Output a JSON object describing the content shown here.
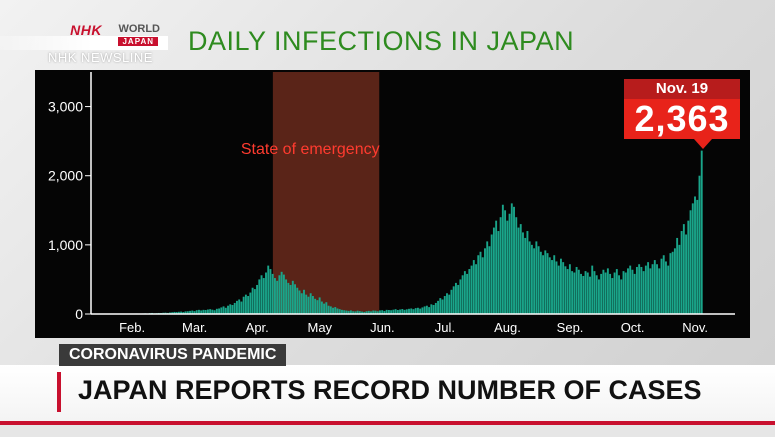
{
  "header": {
    "logo_nhk": "NHK",
    "logo_world": "WORLD",
    "logo_japan": "JAPAN",
    "newsline": "NHK NEWSLINE",
    "chart_title": "DAILY INFECTIONS IN JAPAN"
  },
  "colors": {
    "bar": "#1aa58a",
    "emergency_band": "#5a2418",
    "chart_background": "#050505",
    "title_green": "#2e8b1f",
    "accent_red": "#c8102e",
    "callout_red": "#e8231a"
  },
  "callout": {
    "date": "Nov. 19",
    "value": "2,363"
  },
  "lower_third": {
    "category": "CORONAVIRUS PANDEMIC",
    "headline": "JAPAN REPORTS RECORD NUMBER OF CASES"
  },
  "chart_data": {
    "type": "bar",
    "title": "DAILY INFECTIONS IN JAPAN",
    "xlabel": "",
    "ylabel": "",
    "ylim": [
      0,
      3500
    ],
    "grid": false,
    "y_ticks": [
      {
        "value": 0,
        "label": "0"
      },
      {
        "value": 1000,
        "label": "1,000"
      },
      {
        "value": 2000,
        "label": "2,000"
      },
      {
        "value": 3000,
        "label": "3,000"
      }
    ],
    "x_ticks": [
      {
        "week": 2,
        "label": "Feb."
      },
      {
        "week": 6,
        "label": "Mar."
      },
      {
        "week": 10,
        "label": "Apr."
      },
      {
        "week": 14,
        "label": "May"
      },
      {
        "week": 18,
        "label": "Jun."
      },
      {
        "week": 22,
        "label": "Jul."
      },
      {
        "week": 26,
        "label": "Aug."
      },
      {
        "week": 30,
        "label": "Sep."
      },
      {
        "week": 34,
        "label": "Oct."
      },
      {
        "week": 38,
        "label": "Nov."
      }
    ],
    "annotations": [
      {
        "label": "State of emergency",
        "start_week": 11.5,
        "end_week": 18.3
      }
    ],
    "weekly_daily_values": [
      [
        0,
        0,
        0,
        0,
        0,
        0,
        1
      ],
      [
        1,
        2,
        1,
        3,
        2,
        1,
        2
      ],
      [
        3,
        4,
        5,
        3,
        6,
        8,
        5
      ],
      [
        6,
        8,
        10,
        7,
        12,
        15,
        10
      ],
      [
        12,
        15,
        14,
        18,
        20,
        16,
        22
      ],
      [
        25,
        30,
        28,
        32,
        35,
        28,
        38
      ],
      [
        40,
        45,
        50,
        42,
        55,
        60,
        52
      ],
      [
        60,
        58,
        65,
        70,
        62,
        55,
        75
      ],
      [
        80,
        95,
        110,
        90,
        120,
        140,
        130
      ],
      [
        160,
        190,
        210,
        180,
        250,
        280,
        260
      ],
      [
        310,
        380,
        360,
        420,
        500,
        560,
        520
      ],
      [
        600,
        700,
        650,
        580,
        520,
        480,
        560
      ],
      [
        610,
        570,
        500,
        450,
        420,
        480,
        430
      ],
      [
        380,
        340,
        300,
        350,
        280,
        250,
        300
      ],
      [
        260,
        220,
        200,
        240,
        180,
        150,
        170
      ],
      [
        120,
        110,
        90,
        100,
        80,
        70,
        60
      ],
      [
        55,
        50,
        45,
        52,
        40,
        38,
        48
      ],
      [
        42,
        35,
        30,
        40,
        45,
        38,
        50
      ],
      [
        48,
        40,
        52,
        55,
        45,
        60,
        58
      ],
      [
        55,
        62,
        70,
        58,
        65,
        72,
        60
      ],
      [
        68,
        75,
        80,
        70,
        85,
        90,
        78
      ],
      [
        95,
        110,
        120,
        100,
        140,
        130,
        160
      ],
      [
        190,
        230,
        210,
        260,
        300,
        280,
        350
      ],
      [
        400,
        450,
        420,
        500,
        560,
        620,
        580
      ],
      [
        650,
        700,
        780,
        720,
        850,
        900,
        820
      ],
      [
        950,
        1050,
        980,
        1150,
        1250,
        1350,
        1200
      ],
      [
        1400,
        1580,
        1500,
        1350,
        1450,
        1600,
        1550
      ],
      [
        1400,
        1250,
        1300,
        1180,
        1100,
        1200,
        1050
      ],
      [
        1000,
        950,
        1050,
        980,
        900,
        850,
        920
      ],
      [
        880,
        820,
        780,
        850,
        760,
        700,
        800
      ],
      [
        750,
        690,
        650,
        720,
        620,
        600,
        680
      ],
      [
        640,
        580,
        550,
        620,
        600,
        540,
        700
      ],
      [
        620,
        560,
        500,
        580,
        640,
        600,
        660
      ],
      [
        580,
        520,
        600,
        650,
        560,
        500,
        620
      ],
      [
        600,
        660,
        700,
        640,
        580,
        680,
        720
      ],
      [
        680,
        620,
        700,
        750,
        660,
        720,
        780
      ],
      [
        720,
        660,
        800,
        850,
        760,
        700,
        880
      ],
      [
        900,
        950,
        1100,
        1000,
        1200,
        1300,
        1150
      ],
      [
        1350,
        1500,
        1600,
        1700,
        1650,
        2000,
        2363
      ]
    ]
  }
}
